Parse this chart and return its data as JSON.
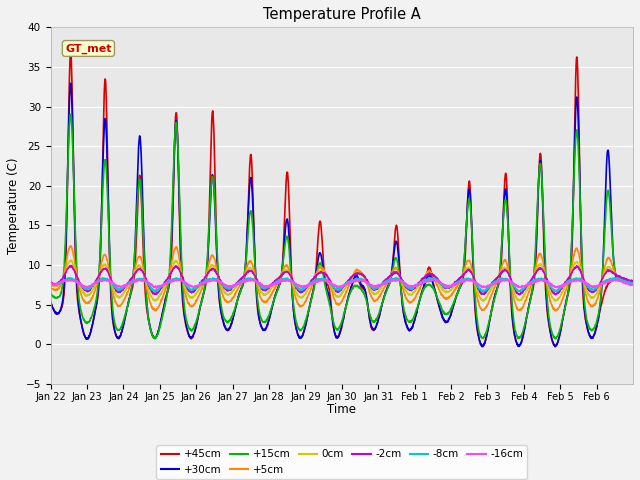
{
  "title": "Temperature Profile A",
  "ylabel": "Temperature (C)",
  "xlabel": "Time",
  "ylim": [
    -5,
    40
  ],
  "fig_bg": "#f2f2f2",
  "plot_bg": "#e8e8e8",
  "series": [
    {
      "label": "+45cm",
      "color": "#dd0000",
      "lw": 1.2
    },
    {
      "label": "+30cm",
      "color": "#0000dd",
      "lw": 1.2
    },
    {
      "label": "+15cm",
      "color": "#00bb00",
      "lw": 1.2
    },
    {
      "label": "+5cm",
      "color": "#ff8800",
      "lw": 1.2
    },
    {
      "label": "0cm",
      "color": "#cccc00",
      "lw": 1.2
    },
    {
      "label": "-2cm",
      "color": "#cc00cc",
      "lw": 1.2
    },
    {
      "label": "-8cm",
      "color": "#00cccc",
      "lw": 1.2
    },
    {
      "label": "-16cm",
      "color": "#ff44ff",
      "lw": 1.2
    }
  ],
  "gt_met_label": "GT_met",
  "gt_met_color": "#cc0000",
  "gt_met_bg": "#ffffcc",
  "tick_labels": [
    "Jan 22",
    "Jan 23",
    "Jan 24",
    "Jan 25",
    "Jan 26",
    "Jan 27",
    "Jan 28",
    "Jan 29",
    "Jan 30",
    "Jan 31",
    "Feb 1",
    "Feb 2",
    "Feb 3",
    "Feb 4",
    "Feb 5",
    "Feb 6"
  ],
  "n_days": 16,
  "pts_per_day": 144
}
